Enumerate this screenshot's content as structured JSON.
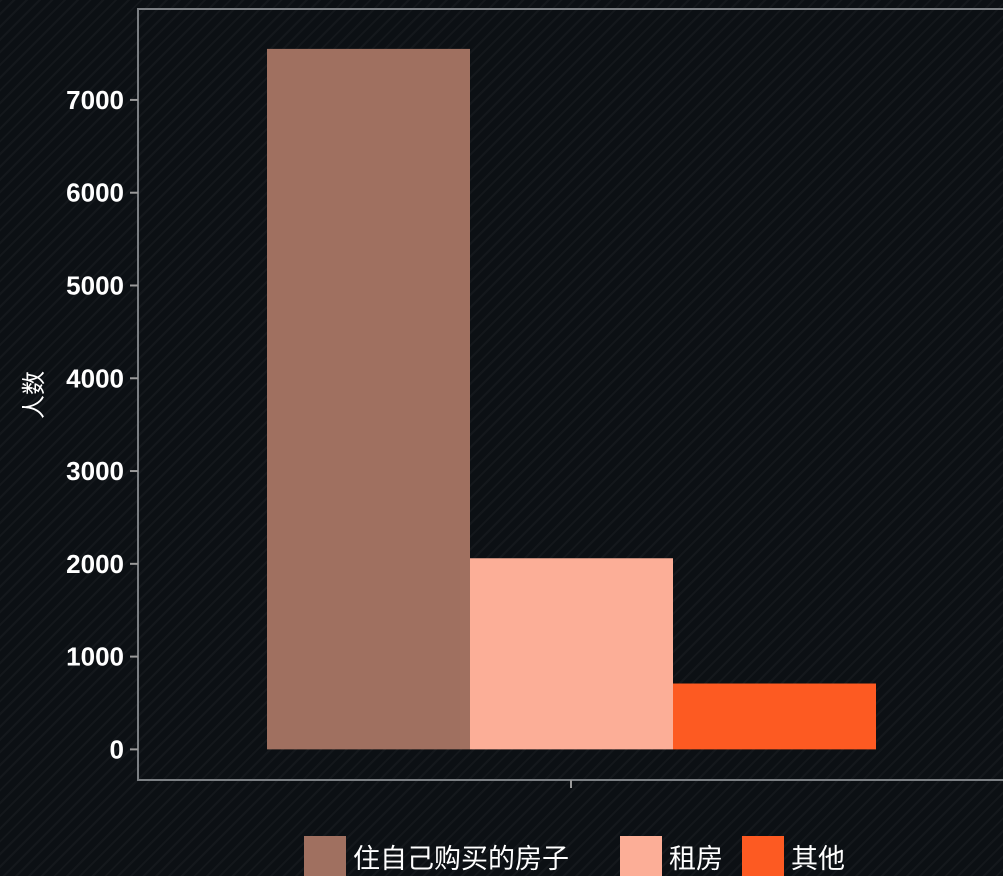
{
  "chart_data": {
    "type": "bar",
    "title": "",
    "xlabel": "",
    "ylabel": "人数",
    "ylim": [
      -330,
      7980
    ],
    "yticks": [
      0,
      1000,
      2000,
      3000,
      4000,
      5000,
      6000,
      7000
    ],
    "grid": false,
    "legend_position": "bottom",
    "series": [
      {
        "name": "住自己购买的房子",
        "value": 7550,
        "color": "#a07060"
      },
      {
        "name": "租房",
        "value": 2060,
        "color": "#fcae97"
      },
      {
        "name": "其他",
        "value": 710,
        "color": "#fd5a22"
      }
    ]
  }
}
